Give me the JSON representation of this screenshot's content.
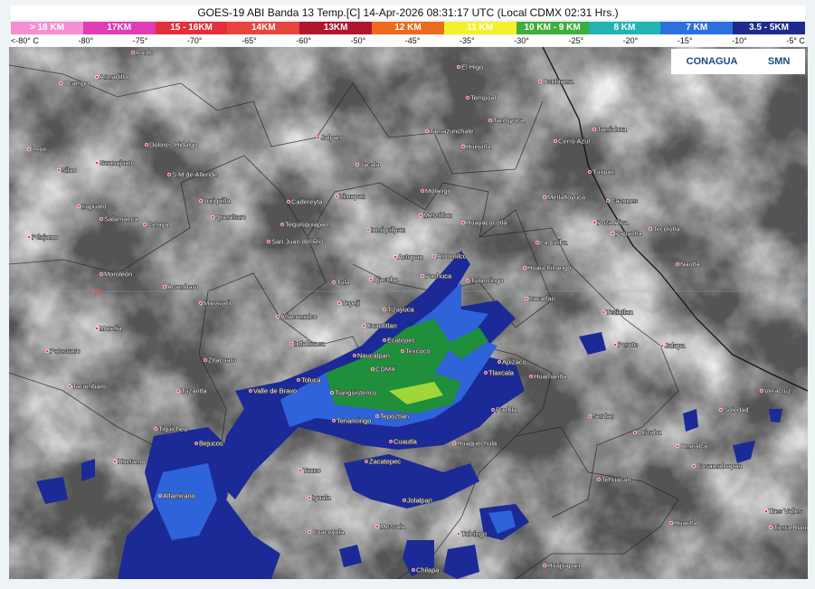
{
  "header": {
    "title": "GOES-19 ABI Banda 13 Temp.[C] 14-Apr-2026 08:31:17 UTC (Local CDMX  02:31 Hrs.)",
    "legend": [
      {
        "label": "> 18 KM",
        "color": "#f58fd2"
      },
      {
        "label": "17KM",
        "color": "#e03cb4"
      },
      {
        "label": "15 - 16KM",
        "color": "#e3303a"
      },
      {
        "label": "14KM",
        "color": "#e8453f"
      },
      {
        "label": "13KM",
        "color": "#b0162c"
      },
      {
        "label": "12 KM",
        "color": "#ee6a1d"
      },
      {
        "label": "11 KM",
        "color": "#f5f02c"
      },
      {
        "label": "10 KM - 9 KM",
        "color": "#3fae3a"
      },
      {
        "label": "8 KM",
        "color": "#22b4b4"
      },
      {
        "label": "7 KM",
        "color": "#2e6fe0"
      },
      {
        "label": "3.5 - 5KM",
        "color": "#1d2a8e"
      }
    ],
    "temperatures": [
      "<-80° C",
      "-80°",
      "-75°",
      "-70°",
      "-65°",
      "-60°",
      "-50°",
      "-45°",
      "-35°",
      "-30°",
      "-25°",
      "-20°",
      "-15°",
      "-10°",
      "-5° C"
    ]
  },
  "logos": [
    "CONAGUA",
    "SMN"
  ],
  "map": {
    "annotations": [
      "+20"
    ],
    "cities": [
      "Pardo",
      "El Higo",
      "Ocampo",
      "Armadillo",
      "Ozuluama",
      "Tempoal",
      "Tantoyuca",
      "Tamiahua",
      "Tamazunchale",
      "Jalpan",
      "León",
      "Dolores Hidalgo",
      "Huejutla",
      "Cerro Azul",
      "Guanajuato",
      "Jacala",
      "Silao",
      "S.M de Allende",
      "Tuxpan",
      "Irapuato",
      "Juriquilla",
      "Cadereyta",
      "Zimapan",
      "Molango",
      "Metlaltoyuca",
      "Cazones",
      "Salamanca",
      "Celaya",
      "Querétaro",
      "Tequisquiapan",
      "Ixmiquilpan",
      "Metztitlan",
      "Huayacocotla",
      "Poza Rica",
      "Papantla",
      "Tecolutla",
      "Pénjamo",
      "San Juan del Rio",
      "La Ceiba",
      "Actopan",
      "Atotonilco",
      "Huauchinango",
      "Nautla",
      "Moroleón",
      "Acambaro",
      "Ajacuba",
      "Pachuca",
      "Tulancingo",
      "Tula",
      "Tepeji",
      "Zacatlan",
      "Maravatio",
      "Tizayuca",
      "Teziutlan",
      "Atlacomulco",
      "Cuautitlan",
      "Ecatepec",
      "Texcoco",
      "Morelia",
      "Patzcuaro",
      "Ixtlahuaca",
      "Naucalpan",
      "Apizaco",
      "Perote",
      "Jalapa",
      "Tlaxcala",
      "Huamantla",
      "Zitacuaro",
      "CDMX",
      "Toluca",
      "Tacambaro",
      "Tuzantla",
      "Valle de Bravo",
      "Tianguistenco",
      "Puebla",
      "Serdan",
      "Orizaba",
      "Veracruz",
      "Soledad",
      "Tenancingo",
      "Tepoztlan",
      "Cuautla",
      "Tiquicheo",
      "Bejucos",
      "Huetamo",
      "Huaquechula",
      "Taxco",
      "Zacatepec",
      "Omealca",
      "Cosamaloapan",
      "Jolalpan",
      "Tehuacan",
      "Altamirano",
      "Iguala",
      "Coacoyula",
      "Mezcala",
      "Tulcingo",
      "Huautla",
      "Tres Valles",
      "Tierra Blanca",
      "Chilapa",
      "Huajuapan"
    ]
  }
}
